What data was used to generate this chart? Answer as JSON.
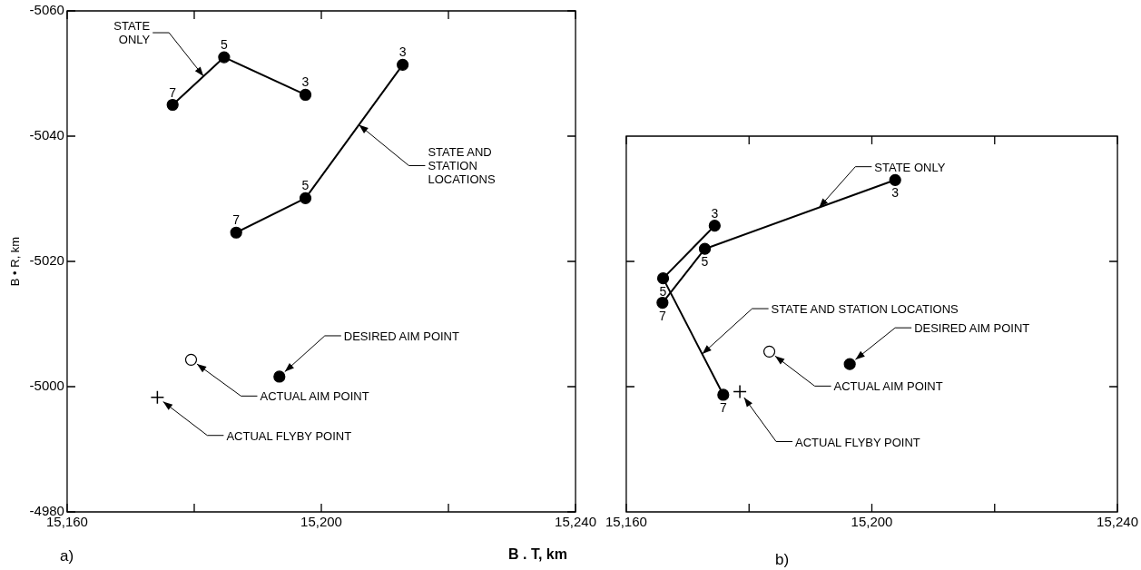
{
  "chart_data": [
    {
      "type": "scatter",
      "xlabel": "B . T, km",
      "ylabel": "B • R, km",
      "annotations": [
        "a)",
        {
          "text": "7",
          "x": 15176.6,
          "y": -5045.0
        },
        {
          "text": "5",
          "x": 15184.7,
          "y": -5052.6
        },
        {
          "text": "3",
          "x": 15197.5,
          "y": -5046.6
        },
        {
          "text": "7",
          "x": 15186.6,
          "y": -5024.6
        },
        {
          "text": "5",
          "x": 15197.5,
          "y": -5030.1
        },
        {
          "text": "3",
          "x": 15212.8,
          "y": -5051.4
        }
      ],
      "xlim": [
        15160,
        15240
      ],
      "xticks": [
        {
          "value": 15160,
          "label": "15,160"
        },
        {
          "value": 15180,
          "label": null
        },
        {
          "value": 15200,
          "label": "15,200"
        },
        {
          "value": 15220,
          "label": null
        },
        {
          "value": 15240,
          "label": "15,240"
        }
      ],
      "ylim": [
        -4980,
        -5060
      ],
      "yticks": [
        -5060,
        -5040,
        -5020,
        -5000,
        -4980
      ],
      "series": [
        {
          "name": "STATE ONLY",
          "type": "line",
          "marker": "circle",
          "color": "#000000",
          "x": [
            15176.6,
            15184.7,
            15197.5
          ],
          "values": [
            -5045.0,
            -5052.6,
            -5046.6
          ]
        },
        {
          "name": "STATE AND STATION LOCATIONS",
          "type": "line",
          "marker": "circle",
          "color": "#000000",
          "x": [
            15186.6,
            15197.5,
            15212.8
          ],
          "values": [
            -5024.6,
            -5030.1,
            -5051.4
          ]
        },
        {
          "name": "DESIRED AIM POINT",
          "type": "scatter",
          "marker": "circle",
          "color": "#000000",
          "x": [
            15193.4
          ],
          "values": [
            -5001.6
          ]
        },
        {
          "name": "ACTUAL AIM POINT",
          "type": "scatter",
          "marker": "circle",
          "color": "#ffffff",
          "x": [
            15179.5
          ],
          "values": [
            -5004.3
          ]
        },
        {
          "name": "ACTUAL FLYBY POINT",
          "type": "scatter",
          "marker": "cross",
          "color": "#000000",
          "x": [
            15174.2
          ],
          "values": [
            -4998.3
          ]
        }
      ]
    },
    {
      "type": "scatter",
      "tick_labels": "x",
      "annotations": [
        "b)",
        {
          "text": "7",
          "x": 15165.9,
          "y": -5013.4
        },
        {
          "text": "5",
          "x": 15172.8,
          "y": -5022.0
        },
        {
          "text": "3",
          "x": 15203.8,
          "y": -5033.0
        },
        {
          "text": "7",
          "x": 15175.8,
          "y": -4998.7
        },
        {
          "text": "5",
          "x": 15166.0,
          "y": -5017.3
        },
        {
          "text": "3",
          "x": 15174.4,
          "y": -5025.7
        }
      ],
      "xlim": [
        15160,
        15240
      ],
      "xticks": [
        {
          "value": 15160,
          "label": "15,160"
        },
        {
          "value": 15180,
          "label": null
        },
        {
          "value": 15200,
          "label": "15,200"
        },
        {
          "value": 15220,
          "label": null
        },
        {
          "value": 15240,
          "label": "15,240"
        }
      ],
      "ylim": [
        -4980,
        -5040
      ],
      "yticks": [
        -5020,
        -5000
      ],
      "series": [
        {
          "name": "STATE ONLY",
          "type": "line",
          "marker": "circle",
          "color": "#000000",
          "x": [
            15165.9,
            15172.8,
            15203.8
          ],
          "values": [
            -5013.4,
            -5022.0,
            -5033.0
          ]
        },
        {
          "name": "STATE AND STATION LOCATIONS",
          "type": "line",
          "marker": "circle",
          "color": "#000000",
          "x": [
            15175.8,
            15166.0,
            15174.4
          ],
          "values": [
            -4998.7,
            -5017.3,
            -5025.7
          ]
        },
        {
          "name": "DESIRED AIM POINT",
          "type": "scatter",
          "marker": "circle",
          "color": "#000000",
          "x": [
            15196.4
          ],
          "values": [
            -5003.6
          ]
        },
        {
          "name": "ACTUAL AIM POINT",
          "type": "scatter",
          "marker": "circle",
          "color": "#ffffff",
          "x": [
            15183.3
          ],
          "values": [
            -5005.6
          ]
        },
        {
          "name": "ACTUAL FLYBY POINT",
          "type": "scatter",
          "marker": "cross",
          "color": "#000000",
          "x": [
            15178.5
          ],
          "values": [
            -4999.2
          ]
        }
      ]
    }
  ]
}
